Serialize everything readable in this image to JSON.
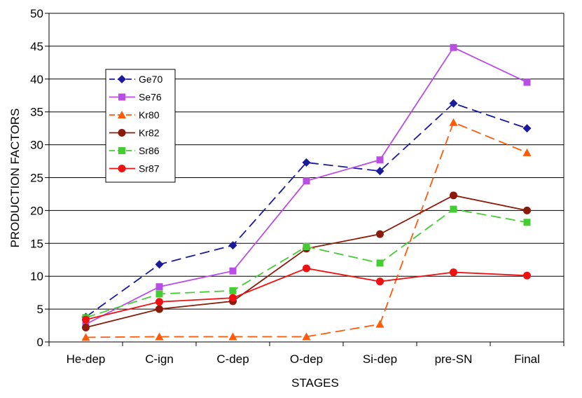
{
  "chart_data": {
    "type": "line",
    "title": "",
    "xlabel": "STAGES",
    "ylabel": "PRODUCTION FACTORS",
    "categories": [
      "He-dep",
      "C-ign",
      "C-dep",
      "O-dep",
      "Si-dep",
      "pre-SN",
      "Final"
    ],
    "ylim": [
      0,
      50
    ],
    "yticks": [
      0,
      5,
      10,
      15,
      20,
      25,
      30,
      35,
      40,
      45,
      50
    ],
    "grid": true,
    "legend_position": "top-left",
    "series": [
      {
        "name": "Ge70",
        "color": "#1a1a9e",
        "dash": "dashed",
        "marker": "diamond",
        "values": [
          3.8,
          11.8,
          14.7,
          27.3,
          26.0,
          36.3,
          32.5
        ]
      },
      {
        "name": "Se76",
        "color": "#b84ee6",
        "dash": "solid",
        "marker": "square",
        "values": [
          2.7,
          8.4,
          10.8,
          24.5,
          27.7,
          44.8,
          39.5
        ]
      },
      {
        "name": "Kr80",
        "color": "#ff5a0a",
        "dash": "dashed",
        "marker": "triangle",
        "values": [
          0.7,
          0.8,
          0.8,
          0.8,
          2.7,
          33.4,
          28.8
        ]
      },
      {
        "name": "Kr82",
        "color": "#8b1a0a",
        "dash": "solid",
        "marker": "circle",
        "values": [
          2.2,
          5.0,
          6.2,
          14.2,
          16.4,
          22.3,
          20.0
        ]
      },
      {
        "name": "Sr86",
        "color": "#44cc33",
        "dash": "dashed",
        "marker": "square",
        "values": [
          3.7,
          7.3,
          7.8,
          14.5,
          12.0,
          20.2,
          18.2
        ]
      },
      {
        "name": "Sr87",
        "color": "#ee1111",
        "dash": "solid",
        "marker": "circle",
        "values": [
          3.4,
          6.1,
          6.7,
          11.2,
          9.2,
          10.6,
          10.1
        ]
      }
    ]
  }
}
